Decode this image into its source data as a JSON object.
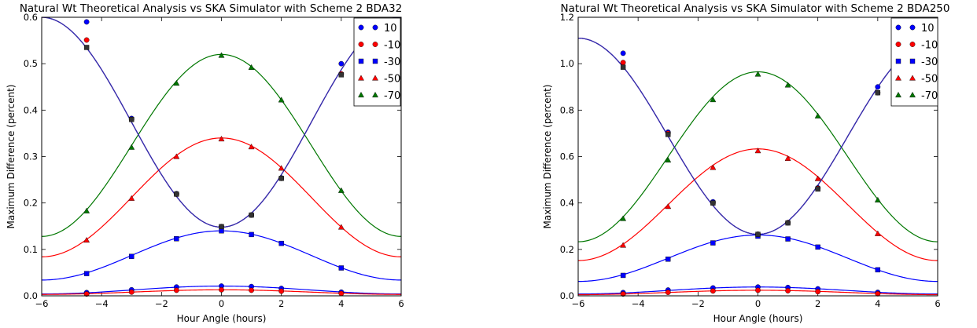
{
  "chart_data": [
    {
      "type": "line",
      "title": "Natural Wt Theoretical Analysis vs SKA Simulator with Scheme 2 BDA32",
      "xlabel": "Hour Angle (hours)",
      "ylabel": "Maximum Difference (percent)",
      "xlim": [
        -6,
        6
      ],
      "ylim": [
        0,
        0.6
      ],
      "xticks": [
        -6,
        -4,
        -2,
        0,
        2,
        4,
        6
      ],
      "xtick_labels": [
        "−6",
        "−4",
        "−2",
        "0",
        "2",
        "4",
        "6"
      ],
      "yticks": [
        0.0,
        0.1,
        0.2,
        0.3,
        0.4,
        0.5,
        0.6
      ],
      "ytick_labels": [
        "0.0",
        "0.1",
        "0.2",
        "0.3",
        "0.4",
        "0.5",
        "0.6"
      ],
      "legend_position": "top-right",
      "series": [
        {
          "name": "10",
          "color": "#0000ff",
          "marker": "circle",
          "curve": "u",
          "points_x": [
            -4.5,
            -3,
            -1.5,
            0,
            1,
            2,
            4
          ],
          "points_y": [
            0.59,
            0.382,
            0.22,
            0.149,
            0.174,
            0.254,
            0.5
          ],
          "curve_params": {
            "edge": 0.6,
            "min": 0.148
          },
          "low_points_x": [
            -4.5,
            -3,
            -1.5,
            0,
            1,
            2,
            4
          ],
          "low_points_y": [
            0.007,
            0.013,
            0.019,
            0.021,
            0.02,
            0.016,
            0.008
          ],
          "low_curve_params": {
            "center": 0.021,
            "edge": 0.004
          }
        },
        {
          "name": "-10",
          "color": "#ff0000",
          "marker": "circle",
          "curve": "u",
          "points_x": [
            -4.5,
            -3,
            -1.5,
            0,
            1,
            2,
            4
          ],
          "points_y": [
            0.551,
            0.38,
            0.219,
            0.149,
            0.174,
            0.253,
            0.478
          ],
          "curve_params": {
            "edge": 0.6,
            "min": 0.148
          },
          "low_points_x": [
            -4.5,
            -3,
            -1.5,
            0,
            1,
            2,
            4
          ],
          "low_points_y": [
            0.004,
            0.008,
            0.012,
            0.013,
            0.012,
            0.01,
            0.005
          ],
          "low_curve_params": {
            "center": 0.013,
            "edge": 0.003
          }
        },
        {
          "name": "-30",
          "color": "#0000ff",
          "marker": "square",
          "curve": "bell",
          "points_x": [
            -4.5,
            -3,
            -1.5,
            0,
            1,
            2,
            4
          ],
          "points_y": [
            0.048,
            0.085,
            0.123,
            0.14,
            0.132,
            0.113,
            0.06
          ],
          "curve_params": {
            "center": 0.14,
            "edge": 0.034
          },
          "u_points_x": [
            -4.5,
            -3,
            -1.5,
            0,
            1,
            2,
            4
          ],
          "u_points_y": [
            0.535,
            0.38,
            0.219,
            0.149,
            0.174,
            0.253,
            0.476
          ]
        },
        {
          "name": "-50",
          "color": "#ff0000",
          "marker": "triangle",
          "curve": "bell",
          "points_x": [
            -4.5,
            -3,
            -1.5,
            0,
            1,
            2,
            4
          ],
          "points_y": [
            0.12,
            0.21,
            0.3,
            0.338,
            0.321,
            0.275,
            0.148
          ],
          "curve_params": {
            "center": 0.34,
            "edge": 0.084
          }
        },
        {
          "name": "-70",
          "color": "#007700",
          "marker": "triangle",
          "curve": "bell",
          "points_x": [
            -4.5,
            -3,
            -1.5,
            0,
            1,
            2,
            4
          ],
          "points_y": [
            0.183,
            0.32,
            0.458,
            0.518,
            0.492,
            0.422,
            0.227
          ],
          "curve_params": {
            "center": 0.52,
            "edge": 0.128
          }
        }
      ]
    },
    {
      "type": "line",
      "title": "Natural Wt Theoretical Analysis vs SKA Simulator with Scheme 2 BDA250",
      "xlabel": "Hour Angle (hours)",
      "ylabel": "Maximum Difference (percent)",
      "xlim": [
        -6,
        6
      ],
      "ylim": [
        0,
        1.2
      ],
      "xticks": [
        -6,
        -4,
        -2,
        0,
        2,
        4,
        6
      ],
      "xtick_labels": [
        "−6",
        "−4",
        "−2",
        "0",
        "2",
        "4",
        "6"
      ],
      "yticks": [
        0.0,
        0.2,
        0.4,
        0.6,
        0.8,
        1.0,
        1.2
      ],
      "ytick_labels": [
        "0.0",
        "0.2",
        "0.4",
        "0.6",
        "0.8",
        "1.0",
        "1.2"
      ],
      "legend_position": "top-right",
      "series": [
        {
          "name": "10",
          "color": "#0000ff",
          "marker": "circle",
          "curve": "u",
          "points_x": [
            -4.5,
            -3,
            -1.5,
            0,
            1,
            2,
            4
          ],
          "points_y": [
            1.045,
            0.705,
            0.405,
            0.265,
            0.315,
            0.465,
            0.9
          ],
          "curve_params": {
            "edge": 1.11,
            "min": 0.265
          },
          "low_points_x": [
            -4.5,
            -3,
            -1.5,
            0,
            1,
            2,
            4
          ],
          "low_points_y": [
            0.014,
            0.025,
            0.034,
            0.038,
            0.036,
            0.03,
            0.015
          ],
          "low_curve_params": {
            "center": 0.038,
            "edge": 0.008
          }
        },
        {
          "name": "-10",
          "color": "#ff0000",
          "marker": "circle",
          "curve": "u",
          "points_x": [
            -4.5,
            -3,
            -1.5,
            0,
            1,
            2,
            4
          ],
          "points_y": [
            1.005,
            0.7,
            0.4,
            0.265,
            0.315,
            0.463,
            0.875
          ],
          "curve_params": {
            "edge": 1.11,
            "min": 0.265
          },
          "low_points_x": [
            -4.5,
            -3,
            -1.5,
            0,
            1,
            2,
            4
          ],
          "low_points_y": [
            0.008,
            0.015,
            0.021,
            0.024,
            0.022,
            0.018,
            0.009
          ],
          "low_curve_params": {
            "center": 0.024,
            "edge": 0.005
          }
        },
        {
          "name": "-30",
          "color": "#0000ff",
          "marker": "square",
          "curve": "bell",
          "points_x": [
            -4.5,
            -3,
            -1.5,
            0,
            1,
            2,
            4
          ],
          "points_y": [
            0.088,
            0.158,
            0.228,
            0.257,
            0.245,
            0.21,
            0.112
          ],
          "curve_params": {
            "center": 0.262,
            "edge": 0.062
          },
          "u_points_x": [
            -4.5,
            -3,
            -1.5,
            0,
            1,
            2,
            4
          ],
          "u_points_y": [
            0.985,
            0.695,
            0.4,
            0.265,
            0.314,
            0.46,
            0.875
          ]
        },
        {
          "name": "-50",
          "color": "#ff0000",
          "marker": "triangle",
          "curve": "bell",
          "points_x": [
            -4.5,
            -3,
            -1.5,
            0,
            1,
            2,
            4
          ],
          "points_y": [
            0.218,
            0.385,
            0.553,
            0.625,
            0.592,
            0.505,
            0.268
          ],
          "curve_params": {
            "center": 0.633,
            "edge": 0.152
          }
        },
        {
          "name": "-70",
          "color": "#007700",
          "marker": "triangle",
          "curve": "bell",
          "points_x": [
            -4.5,
            -3,
            -1.5,
            0,
            1,
            2,
            4
          ],
          "points_y": [
            0.333,
            0.585,
            0.845,
            0.955,
            0.908,
            0.775,
            0.413
          ],
          "curve_params": {
            "center": 0.965,
            "edge": 0.233
          }
        }
      ]
    }
  ]
}
